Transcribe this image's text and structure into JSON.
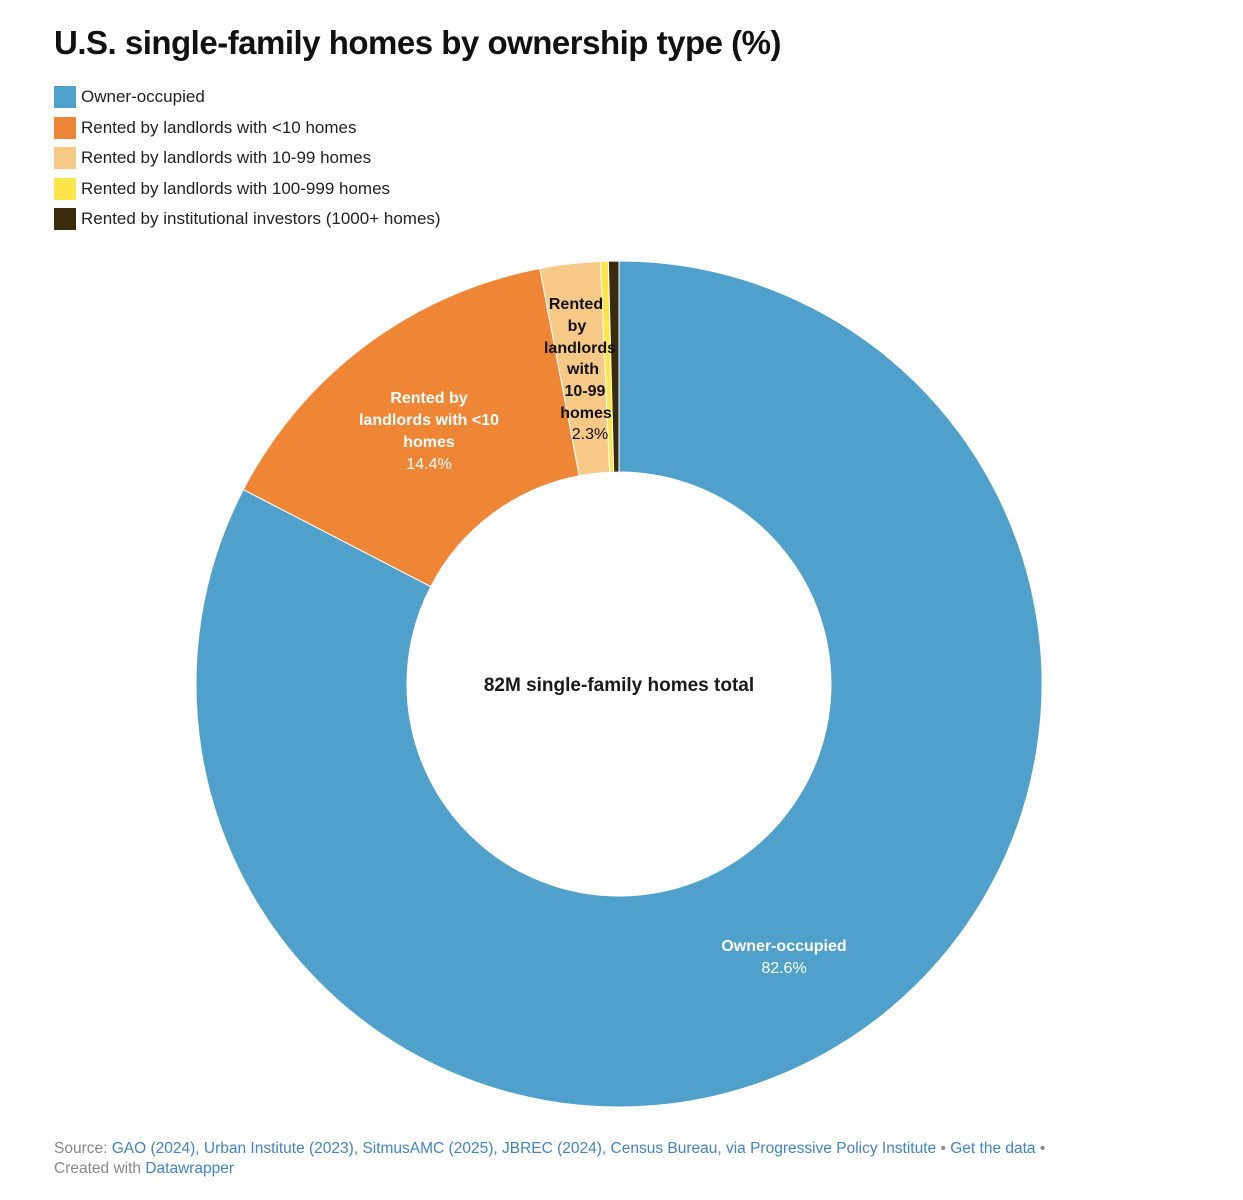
{
  "title": "U.S. single-family homes by ownership type (%)",
  "legend": [
    {
      "label": "Owner-occupied",
      "color": "#4fa0ca"
    },
    {
      "label": "Rented by landlords with <10 homes",
      "color": "#ef8636"
    },
    {
      "label": "Rented by landlords with 10-99 homes",
      "color": "#f7c986"
    },
    {
      "label": "Rented by landlords with 100-999 homes",
      "color": "#fde54a"
    },
    {
      "label": "Rented by institutional investors (1000+ homes)",
      "color": "#3a2b0c"
    }
  ],
  "center_label": "82M single-family homes total",
  "slice_labels": {
    "owner": {
      "name": "Owner-occupied",
      "value": "82.6%"
    },
    "lt10": {
      "line1": "Rented by",
      "line2": "landlords with <10",
      "line3": "homes",
      "value": "14.4%"
    },
    "s10_99": {
      "line1": "Rented",
      "line2": "by",
      "line3": "landlords",
      "line4": "with",
      "line5": "10-99",
      "line6": "homes",
      "value": "2.3%"
    }
  },
  "footer": {
    "source_prefix": "Source:",
    "sources": "GAO (2024), Urban Institute (2023), SitmusAMC (2025), JBREC (2024), Census Bureau, via Progressive Policy Institute",
    "separator": "•",
    "get_data": "Get the data",
    "created_with": "Created with",
    "datawrapper": "Datawrapper"
  },
  "chart_data": {
    "type": "pie",
    "subtype": "donut",
    "title": "U.S. single-family homes by ownership type (%)",
    "center_text": "82M single-family homes total",
    "categories": [
      "Owner-occupied",
      "Rented by landlords with <10 homes",
      "Rented by landlords with 10-99 homes",
      "Rented by landlords with 100-999 homes",
      "Rented by institutional investors (1000+ homes)"
    ],
    "values": [
      82.6,
      14.4,
      2.3,
      0.3,
      0.4
    ],
    "colors": [
      "#4fa0ca",
      "#ef8636",
      "#f7c986",
      "#fde54a",
      "#3a2b0c"
    ],
    "legend_position": "top-left"
  }
}
